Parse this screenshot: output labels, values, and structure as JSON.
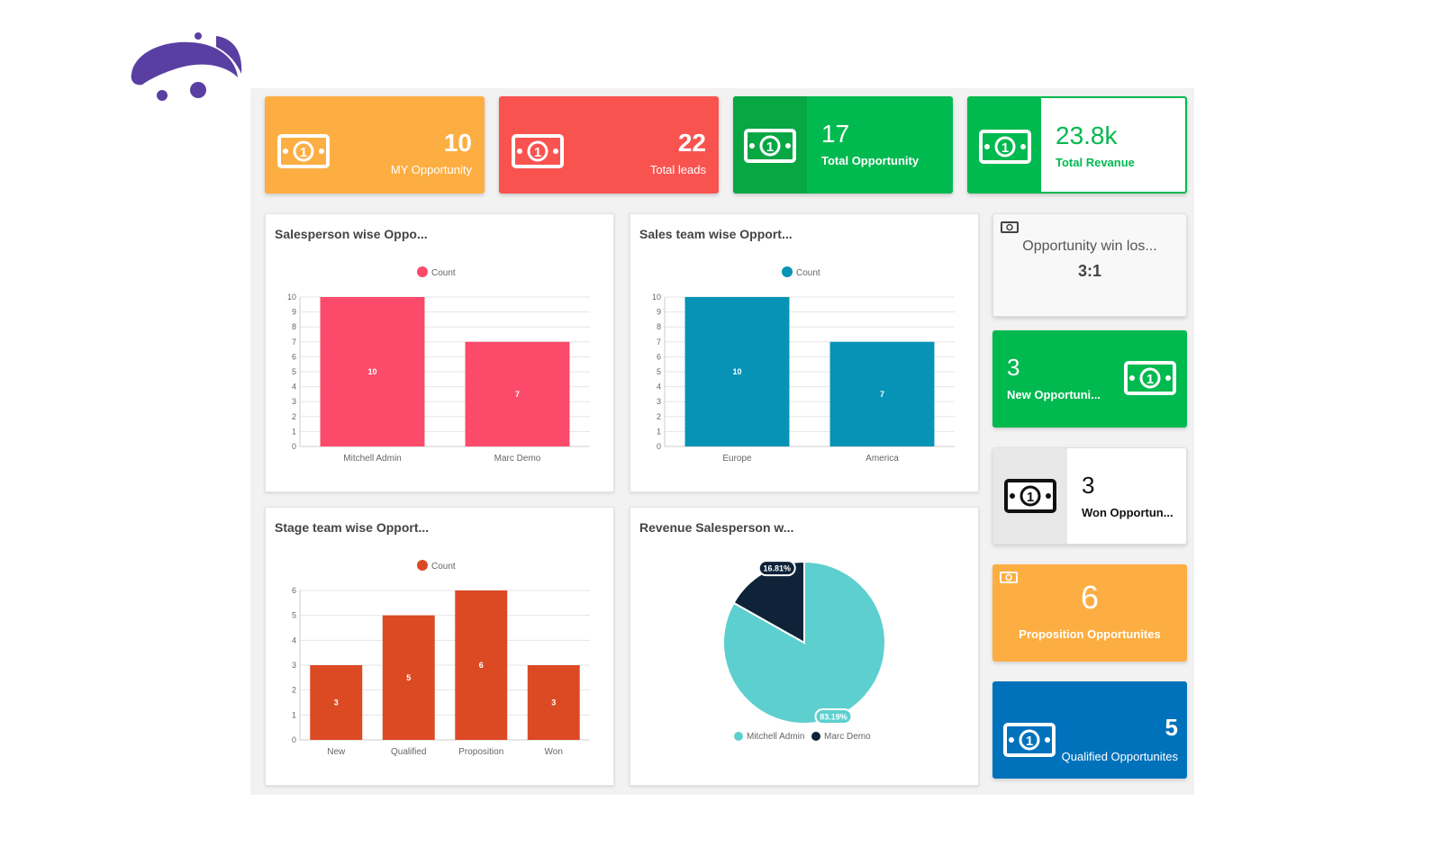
{
  "kpis": {
    "my_opportunity": {
      "value": "10",
      "label": "MY Opportunity",
      "color": "#fdae42"
    },
    "total_leads": {
      "value": "22",
      "label": "Total leads",
      "color": "#f9534f"
    },
    "total_opportunity": {
      "value": "17",
      "label": "Total Opportunity",
      "color": "#00b94f"
    },
    "total_revenue": {
      "value": "23.8k",
      "label": "Total Revanue",
      "color": "#00b94f"
    }
  },
  "side": {
    "win_loss": {
      "title": "Opportunity win los...",
      "value": "3:1"
    },
    "new_opp": {
      "value": "3",
      "label": "New Opportuni...",
      "color": "#00b94f"
    },
    "won_opp": {
      "value": "3",
      "label": "Won Opportun..."
    },
    "proposition": {
      "value": "6",
      "label": "Proposition Opportunites",
      "color": "#fdae42"
    },
    "qualified": {
      "value": "5",
      "label": "Qualified Opportunites",
      "color": "#0072bc"
    }
  },
  "chart_data": [
    {
      "type": "bar",
      "title": "Salesperson wise Oppo...",
      "series": [
        {
          "name": "Count",
          "values": [
            10,
            7
          ]
        }
      ],
      "categories": [
        "Mitchell Admin",
        "Marc Demo"
      ],
      "ylim": [
        0,
        10
      ],
      "yticks": [
        0,
        1,
        2,
        3,
        4,
        5,
        6,
        7,
        8,
        9,
        10
      ],
      "color": "#fb4a6a",
      "legend": "top",
      "grid": true
    },
    {
      "type": "bar",
      "title": "Sales team wise Opport...",
      "series": [
        {
          "name": "Count",
          "values": [
            10,
            7
          ]
        }
      ],
      "categories": [
        "Europe",
        "America"
      ],
      "ylim": [
        0,
        10
      ],
      "yticks": [
        0,
        1,
        2,
        3,
        4,
        5,
        6,
        7,
        8,
        9,
        10
      ],
      "color": "#0793b5",
      "legend": "top",
      "grid": true
    },
    {
      "type": "bar",
      "title": "Stage team wise Opport...",
      "series": [
        {
          "name": "Count",
          "values": [
            3,
            5,
            6,
            3
          ]
        }
      ],
      "categories": [
        "New",
        "Qualified",
        "Proposition",
        "Won"
      ],
      "ylim": [
        0,
        6
      ],
      "yticks": [
        0,
        1,
        2,
        3,
        4,
        5,
        6
      ],
      "color": "#dc4a24",
      "legend": "top",
      "grid": true
    },
    {
      "type": "pie",
      "title": "Revenue Salesperson w...",
      "slices": [
        {
          "label": "Mitchell Admin",
          "value": 83.19,
          "text": "83.19%",
          "color": "#5ecfcf"
        },
        {
          "label": "Marc Demo",
          "value": 16.81,
          "text": "16.81%",
          "color": "#0e2238"
        }
      ],
      "legend": "bottom"
    }
  ]
}
